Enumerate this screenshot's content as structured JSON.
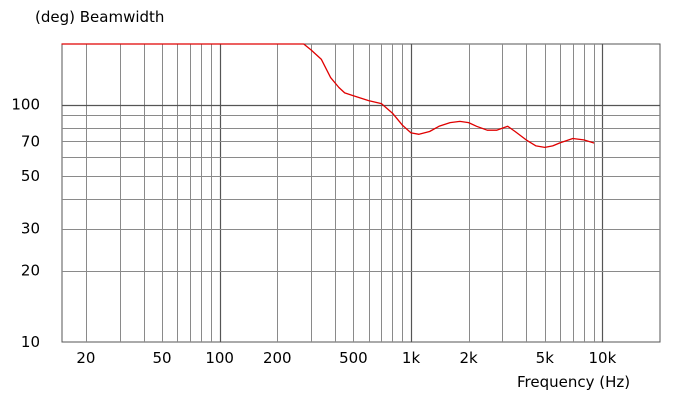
{
  "chart_data": {
    "type": "line",
    "title": "(deg)  Beamwidth",
    "xlabel": "Frequency  (Hz)",
    "ylabel": "",
    "x_scale": "log",
    "y_scale": "log",
    "xlim": [
      15,
      20000
    ],
    "ylim": [
      10,
      180
    ],
    "grid": true,
    "x_ticks": [
      {
        "value": 20,
        "label": "20"
      },
      {
        "value": 50,
        "label": "50"
      },
      {
        "value": 100,
        "label": "100"
      },
      {
        "value": 200,
        "label": "200"
      },
      {
        "value": 500,
        "label": "500"
      },
      {
        "value": 1000,
        "label": "1k"
      },
      {
        "value": 2000,
        "label": "2k"
      },
      {
        "value": 5000,
        "label": "5k"
      },
      {
        "value": 10000,
        "label": "10k"
      }
    ],
    "y_ticks": [
      {
        "value": 10,
        "label": "10"
      },
      {
        "value": 20,
        "label": "20"
      },
      {
        "value": 30,
        "label": "30"
      },
      {
        "value": 50,
        "label": "50"
      },
      {
        "value": 70,
        "label": "70"
      },
      {
        "value": 100,
        "label": "100"
      }
    ],
    "series": [
      {
        "color": "#e00000",
        "x": [
          15,
          275,
          300,
          340,
          380,
          420,
          450,
          500,
          600,
          700,
          800,
          900,
          1000,
          1100,
          1250,
          1400,
          1600,
          1800,
          2000,
          2200,
          2500,
          2800,
          3200,
          3500,
          4000,
          4500,
          5000,
          5500,
          6000,
          7000,
          8000,
          9000
        ],
        "y": [
          180,
          180,
          170,
          155,
          130,
          118,
          112,
          109,
          104,
          101,
          92,
          82,
          76,
          75,
          77,
          81,
          84,
          85,
          84,
          81,
          78,
          78,
          81,
          77,
          71,
          67,
          66,
          67,
          69,
          72,
          71,
          69
        ]
      }
    ]
  }
}
